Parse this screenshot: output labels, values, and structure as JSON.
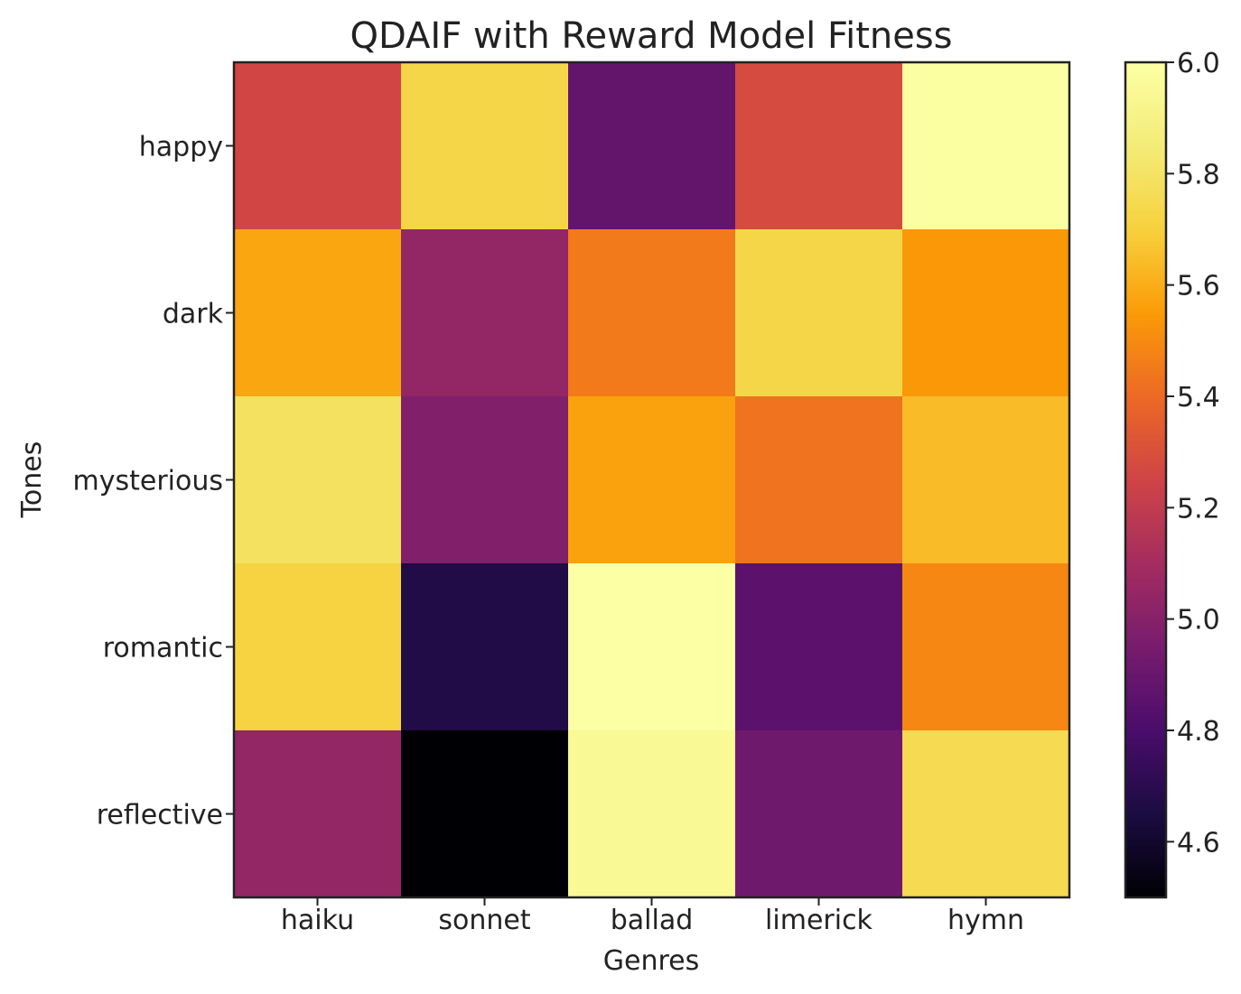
{
  "chart_data": {
    "type": "heatmap",
    "title": "QDAIF with Reward Model Fitness",
    "xlabel": "Genres",
    "ylabel": "Tones",
    "x_categories": [
      "haiku",
      "sonnet",
      "ballad",
      "limerick",
      "hymn"
    ],
    "y_categories": [
      "happy",
      "dark",
      "mysterious",
      "romantic",
      "reflective"
    ],
    "values": [
      [
        5.26,
        5.73,
        4.88,
        5.28,
        5.99
      ],
      [
        5.58,
        5.04,
        5.45,
        5.73,
        5.54
      ],
      [
        5.79,
        4.98,
        5.57,
        5.43,
        5.64
      ],
      [
        5.71,
        4.67,
        6.0,
        4.86,
        5.49
      ],
      [
        5.04,
        4.5,
        5.95,
        4.92,
        5.75
      ]
    ],
    "colorbar": {
      "colormap": "inferno",
      "range": [
        4.5,
        6.0
      ],
      "ticks": [
        "4.6",
        "4.8",
        "5.0",
        "5.2",
        "5.4",
        "5.6",
        "5.8",
        "6.0"
      ]
    },
    "grid": false
  }
}
